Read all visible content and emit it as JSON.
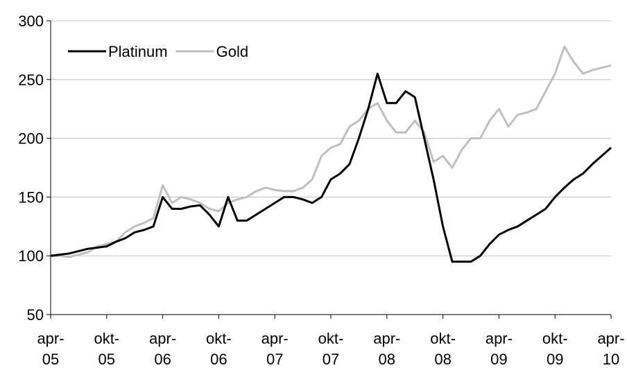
{
  "chart_data": {
    "type": "line",
    "x": [
      "2005-04",
      "2005-05",
      "2005-06",
      "2005-07",
      "2005-08",
      "2005-09",
      "2005-10",
      "2005-11",
      "2005-12",
      "2006-01",
      "2006-02",
      "2006-03",
      "2006-04",
      "2006-05",
      "2006-06",
      "2006-07",
      "2006-08",
      "2006-09",
      "2006-10",
      "2006-11",
      "2006-12",
      "2007-01",
      "2007-02",
      "2007-03",
      "2007-04",
      "2007-05",
      "2007-06",
      "2007-07",
      "2007-08",
      "2007-09",
      "2007-10",
      "2007-11",
      "2007-12",
      "2008-01",
      "2008-02",
      "2008-03",
      "2008-04",
      "2008-05",
      "2008-06",
      "2008-07",
      "2008-08",
      "2008-09",
      "2008-10",
      "2008-11",
      "2008-12",
      "2009-01",
      "2009-02",
      "2009-03",
      "2009-04",
      "2009-05",
      "2009-06",
      "2009-07",
      "2009-08",
      "2009-09",
      "2009-10",
      "2009-11",
      "2009-12",
      "2010-01",
      "2010-02",
      "2010-03",
      "2010-04"
    ],
    "series": [
      {
        "name": "Platinum",
        "color": "#000000",
        "values": [
          100,
          101,
          102,
          104,
          106,
          107,
          108,
          112,
          115,
          120,
          122,
          125,
          150,
          140,
          140,
          142,
          143,
          135,
          125,
          150,
          130,
          130,
          135,
          140,
          145,
          150,
          150,
          148,
          145,
          150,
          165,
          170,
          178,
          200,
          225,
          255,
          230,
          230,
          240,
          235,
          200,
          165,
          125,
          95,
          95,
          95,
          100,
          110,
          118,
          122,
          125,
          130,
          135,
          140,
          150,
          158,
          165,
          170,
          178,
          185,
          192
        ]
      },
      {
        "name": "Gold",
        "color": "#bfbfbf",
        "values": [
          100,
          100,
          99,
          101,
          103,
          108,
          110,
          112,
          120,
          125,
          128,
          132,
          160,
          145,
          150,
          148,
          145,
          140,
          138,
          145,
          148,
          150,
          155,
          158,
          156,
          155,
          155,
          158,
          165,
          185,
          192,
          195,
          210,
          215,
          225,
          230,
          215,
          205,
          205,
          215,
          205,
          180,
          185,
          175,
          190,
          200,
          200,
          215,
          225,
          210,
          220,
          222,
          225,
          240,
          255,
          278,
          265,
          255,
          258,
          260,
          262
        ]
      }
    ],
    "ylim": [
      50,
      300
    ],
    "yticks": [
      50,
      100,
      150,
      200,
      250,
      300
    ],
    "grid": true,
    "legend": "upper left",
    "xticks": [
      {
        "value": "2005-04",
        "label": [
          "apr-",
          "05"
        ]
      },
      {
        "value": "2005-10",
        "label": [
          "okt-",
          "05"
        ]
      },
      {
        "value": "2006-04",
        "label": [
          "apr-",
          "06"
        ]
      },
      {
        "value": "2006-10",
        "label": [
          "okt-",
          "06"
        ]
      },
      {
        "value": "2007-04",
        "label": [
          "apr-",
          "07"
        ]
      },
      {
        "value": "2007-10",
        "label": [
          "okt-",
          "07"
        ]
      },
      {
        "value": "2008-04",
        "label": [
          "apr-",
          "08"
        ]
      },
      {
        "value": "2008-10",
        "label": [
          "okt-",
          "08"
        ]
      },
      {
        "value": "2009-04",
        "label": [
          "apr-",
          "09"
        ]
      },
      {
        "value": "2009-10",
        "label": [
          "okt-",
          "09"
        ]
      },
      {
        "value": "2010-04",
        "label": [
          "apr-",
          "10"
        ]
      }
    ]
  }
}
